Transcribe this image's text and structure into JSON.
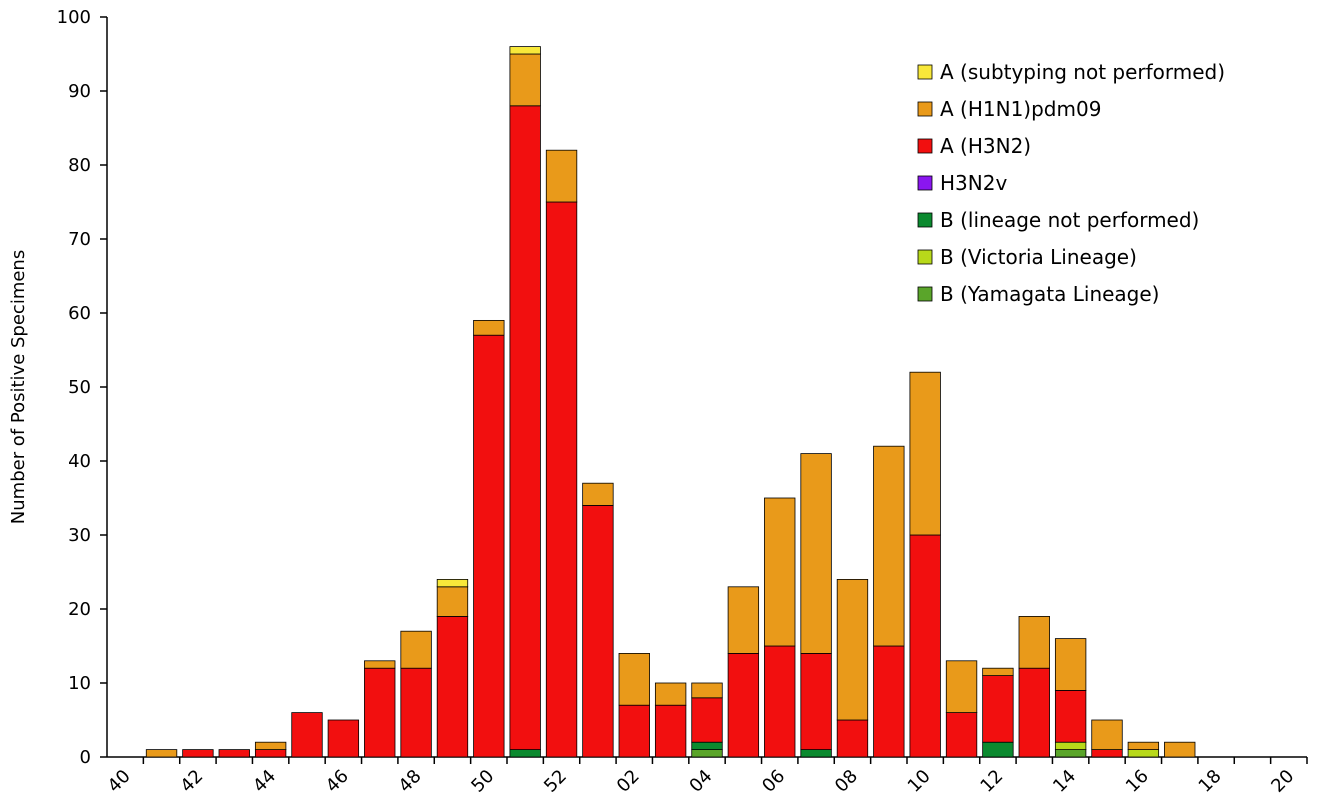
{
  "chart_data": {
    "type": "bar",
    "stacked": true,
    "y_label": "Number of Positive Specimens",
    "categories": [
      "40",
      null,
      "42",
      null,
      "44",
      null,
      "46",
      null,
      "48",
      null,
      "50",
      null,
      "52",
      null,
      "02",
      null,
      "04",
      null,
      "06",
      null,
      "08",
      null,
      "10",
      null,
      "12",
      null,
      "14",
      null,
      "16",
      null,
      "18",
      null,
      "20"
    ],
    "ylim": [
      0,
      100
    ],
    "yticks": [
      0,
      10,
      20,
      30,
      40,
      50,
      60,
      70,
      80,
      90,
      100
    ],
    "grid": false,
    "legend": "upper right",
    "series": [
      {
        "name": "B (Yamagata Lineage)",
        "color": "#5aa52a",
        "values": [
          0,
          0,
          0,
          0,
          0,
          0,
          0,
          0,
          0,
          0,
          0,
          0,
          0,
          0,
          0,
          0,
          1,
          0,
          0,
          0,
          0,
          0,
          0,
          0,
          0,
          0,
          1,
          0,
          0,
          0,
          0,
          0,
          0
        ]
      },
      {
        "name": "B (Victoria Lineage)",
        "color": "#b8d91a",
        "values": [
          0,
          0,
          0,
          0,
          0,
          0,
          0,
          0,
          0,
          0,
          0,
          0,
          0,
          0,
          0,
          0,
          0,
          0,
          0,
          0,
          0,
          0,
          0,
          0,
          0,
          0,
          1,
          0,
          1,
          0,
          0,
          0,
          0
        ]
      },
      {
        "name": "B (lineage not performed)",
        "color": "#0b8a2f",
        "values": [
          0,
          0,
          0,
          0,
          0,
          0,
          0,
          0,
          0,
          0,
          0,
          1,
          0,
          0,
          0,
          0,
          1,
          0,
          0,
          1,
          0,
          0,
          0,
          0,
          2,
          0,
          0,
          0,
          0,
          0,
          0,
          0,
          0
        ]
      },
      {
        "name": "H3N2v",
        "color": "#8a16f0",
        "values": [
          0,
          0,
          0,
          0,
          0,
          0,
          0,
          0,
          0,
          0,
          0,
          0,
          0,
          0,
          0,
          0,
          0,
          0,
          0,
          0,
          0,
          0,
          0,
          0,
          0,
          0,
          0,
          0,
          0,
          0,
          0,
          0,
          0
        ]
      },
      {
        "name": "A (H3N2)",
        "color": "#f20f0f",
        "values": [
          0,
          0,
          1,
          1,
          1,
          6,
          5,
          12,
          12,
          19,
          57,
          87,
          75,
          34,
          7,
          7,
          6,
          14,
          15,
          13,
          5,
          15,
          30,
          6,
          9,
          12,
          7,
          1,
          0,
          0,
          0,
          0,
          0
        ]
      },
      {
        "name": "A (H1N1)pdm09",
        "color": "#e99a1a",
        "values": [
          0,
          1,
          0,
          0,
          1,
          0,
          0,
          1,
          5,
          4,
          2,
          7,
          7,
          3,
          7,
          3,
          2,
          9,
          20,
          27,
          19,
          27,
          22,
          7,
          1,
          7,
          7,
          4,
          1,
          2,
          0,
          0,
          0
        ]
      },
      {
        "name": "A (subtyping not performed)",
        "color": "#f8e83a",
        "values": [
          0,
          0,
          0,
          0,
          0,
          0,
          0,
          0,
          0,
          1,
          0,
          1,
          0,
          0,
          0,
          0,
          0,
          0,
          0,
          0,
          0,
          0,
          0,
          0,
          0,
          0,
          0,
          0,
          0,
          0,
          0,
          0,
          0
        ]
      }
    ]
  }
}
